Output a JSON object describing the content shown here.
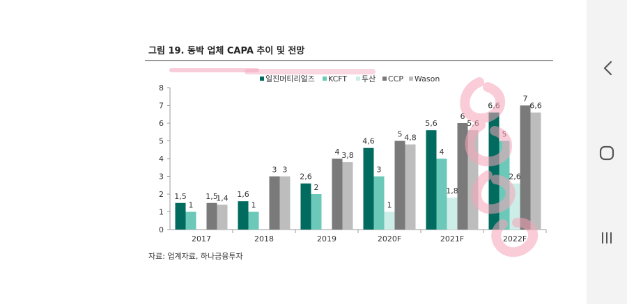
{
  "figure": {
    "title": "그림 19. 동박 업체 CAPA 추이 및 전망",
    "source": "자료: 업계자료, 하나금융투자"
  },
  "nav": {
    "back_icon": "chevron-left-icon",
    "home_icon": "circle-home-icon",
    "recents_icon": "three-lines-icon"
  },
  "chart_data": {
    "type": "bar",
    "title": "그림 19. 동박 업체 CAPA 추이 및 전망",
    "xlabel": "",
    "ylabel": "",
    "ylim": [
      0,
      8
    ],
    "yticks": [
      "0",
      "1",
      "2",
      "3",
      "4",
      "5",
      "6",
      "7",
      "8"
    ],
    "categories": [
      "2017",
      "2018",
      "2019",
      "2020F",
      "2021F",
      "2022F"
    ],
    "legend_position": "top",
    "series": [
      {
        "name": "일진머티리얼즈",
        "color": "#006b5e",
        "values": [
          1.5,
          1.6,
          2.6,
          4.6,
          5.6,
          6.6
        ],
        "labels": [
          "1,5",
          "1,6",
          "2,6",
          "4,6",
          "5,6",
          "6,6"
        ]
      },
      {
        "name": "KCFT",
        "color": "#6cc8b8",
        "values": [
          1,
          1,
          2,
          3,
          4,
          5
        ],
        "labels": [
          "1",
          "1",
          "2",
          "3",
          "4",
          "5"
        ]
      },
      {
        "name": "두산",
        "color": "#cdeee8",
        "values": [
          null,
          null,
          null,
          1,
          1.8,
          2.6
        ],
        "labels": [
          "",
          "",
          "",
          "1",
          "1,8",
          "2,6"
        ]
      },
      {
        "name": "CCP",
        "color": "#7a7a7a",
        "values": [
          1.5,
          3,
          4,
          5,
          6,
          7
        ],
        "labels": [
          "1,5",
          "3",
          "4",
          "5",
          "6",
          "7"
        ]
      },
      {
        "name": "Wason",
        "color": "#bdbdbd",
        "values": [
          1.4,
          3,
          3.8,
          4.8,
          5.6,
          6.6
        ],
        "labels": [
          "1,4",
          "3",
          "3,8",
          "4,8",
          "5,6",
          "6,6"
        ]
      }
    ]
  }
}
